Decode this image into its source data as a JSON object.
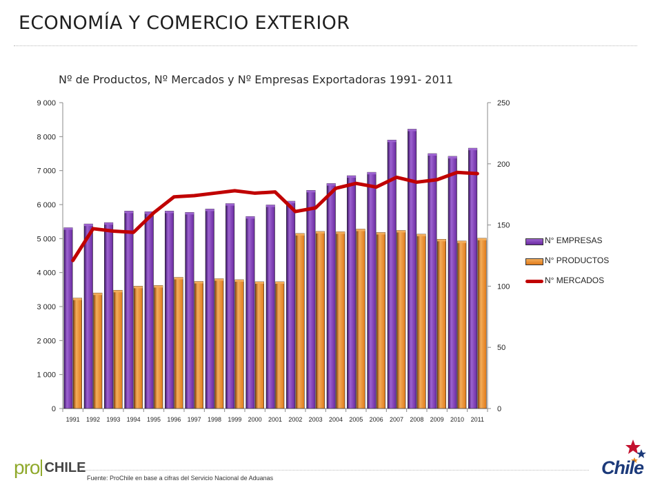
{
  "slide": {
    "title": "ECONOMÍA Y COMERCIO EXTERIOR",
    "source": "Fuente: ProChile en base a cifras del Servicio Nacional de Aduanas",
    "logo_left_pro": "pro",
    "logo_left_chile": "CHILE",
    "logo_right": "Chile"
  },
  "colors": {
    "empresas": "#6a2aa0",
    "empresas_light": "#9d63d0",
    "empresas_dark": "#3a1266",
    "productos": "#e07a1a",
    "productos_light": "#f3ad5a",
    "productos_dark": "#8a4006",
    "mercados": "#c00000",
    "axis": "#888888"
  },
  "chart_data": {
    "type": "bar",
    "title": "Nº de Productos, Nº Mercados  y Nº Empresas Exportadoras 1991- 2011",
    "categories": [
      "1991",
      "1992",
      "1993",
      "1994",
      "1995",
      "1996",
      "1997",
      "1998",
      "1999",
      "2000",
      "2001",
      "2002",
      "2003",
      "2004",
      "2005",
      "2006",
      "2007",
      "2008",
      "2009",
      "2010",
      "2011"
    ],
    "series": [
      {
        "name": "N° EMPRESAS",
        "type": "bar",
        "axis": "left",
        "values": [
          5320,
          5430,
          5470,
          5810,
          5790,
          5810,
          5770,
          5870,
          6030,
          5650,
          5990,
          6100,
          6420,
          6620,
          6850,
          6950,
          7900,
          8220,
          7500,
          7420,
          7660
        ]
      },
      {
        "name": "N° PRODUCTOS",
        "type": "bar",
        "axis": "left",
        "values": [
          3250,
          3400,
          3480,
          3600,
          3620,
          3860,
          3740,
          3820,
          3790,
          3730,
          3730,
          5150,
          5210,
          5200,
          5280,
          5180,
          5240,
          5130,
          4980,
          4930,
          5010
        ]
      },
      {
        "name": "N° MERCADOS",
        "type": "line",
        "axis": "right",
        "values": [
          121,
          147,
          145,
          144,
          160,
          173,
          174,
          176,
          178,
          176,
          177,
          161,
          164,
          180,
          184,
          181,
          189,
          185,
          187,
          193,
          192
        ]
      }
    ],
    "y_left": {
      "min": 0,
      "max": 9000,
      "ticks": [
        0,
        1000,
        2000,
        3000,
        4000,
        5000,
        6000,
        7000,
        8000,
        9000
      ],
      "tick_labels": [
        "0",
        "1 000",
        "2 000",
        "3 000",
        "4 000",
        "5 000",
        "6 000",
        "7 000",
        "8 000",
        "9 000"
      ]
    },
    "y_right": {
      "min": 0,
      "max": 250,
      "ticks": [
        0,
        50,
        100,
        150,
        200,
        250
      ],
      "tick_labels": [
        "0",
        "50",
        "100",
        "150",
        "200",
        "250"
      ]
    },
    "grid": false,
    "legend_position": "right"
  }
}
